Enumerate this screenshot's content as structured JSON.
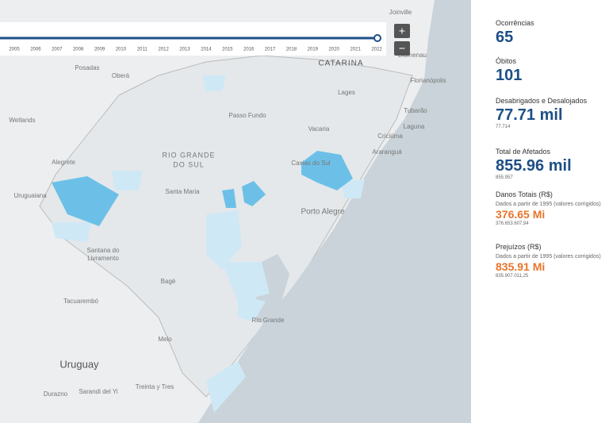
{
  "timeline": {
    "years": [
      2005,
      2006,
      2007,
      2008,
      2009,
      2010,
      2011,
      2012,
      2013,
      2014,
      2015,
      2016,
      2017,
      2018,
      2019,
      2020,
      2021,
      2022
    ]
  },
  "zoom": {
    "in": "+",
    "out": "−"
  },
  "map": {
    "labels": [
      "Joinville",
      "Blumenau",
      "CATARINA",
      "Florianópolis",
      "Lages",
      "Posadas",
      "Oberá",
      "Passo Fundo",
      "RIO GRANDE",
      "DO SUL",
      "Vacaria",
      "Criciúma",
      "Araranguá",
      "Uruguaiana",
      "Santa Maria",
      "Caxias do Sul",
      "Porto Alegre",
      "Santana do",
      "Livramento",
      "Bagé",
      "Tacuarembó",
      "Melo",
      "Rio Grande",
      "Uruguay",
      "Durazno",
      "Sarandi del Yi",
      "Treinta y Tres",
      "Laguna",
      "Tubarão",
      "Alegrete",
      "Wetlands"
    ]
  },
  "stats": [
    {
      "label": "Ocorrências",
      "value": 65
    },
    {
      "label": "Óbitos",
      "value": 101
    },
    {
      "label": "Desabrigados e Desalojados",
      "value": "77.71 mil",
      "detail": "77.714"
    },
    {
      "label": "Total de Afetados",
      "value": "855.96 mil",
      "detail": "855.957"
    },
    {
      "label": "Danos Totais (R$)",
      "note": "Dados a partir de 1995 (valores corrigidos)",
      "value": "376.65 Mi",
      "detail": "376.653.607,94"
    },
    {
      "label": "Prejuízos (R$)",
      "note": "Dados a partir de 1995 (valores corrigidos)",
      "value": "835.91 Mi",
      "detail": "835.907.011,25"
    }
  ]
}
